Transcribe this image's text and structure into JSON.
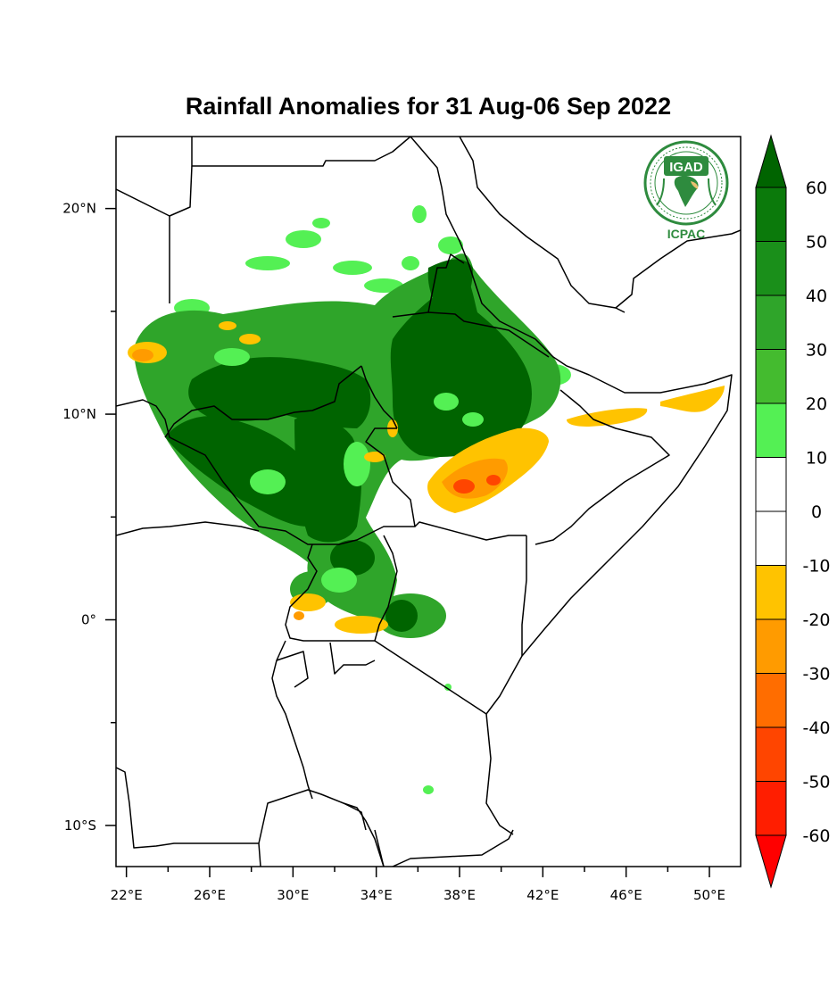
{
  "title": "Rainfall Anomalies for 31 Aug-06 Sep 2022",
  "map": {
    "lon_range": [
      21.5,
      51.5
    ],
    "lat_range": [
      -12,
      23.5
    ],
    "lat_ticks": [
      {
        "label": "20°N",
        "value": 20
      },
      {
        "label": "10°N",
        "value": 10
      },
      {
        "label": "0°",
        "value": 0
      },
      {
        "label": "10°S",
        "value": -10
      }
    ],
    "lat_minor_ticks": [
      15,
      5,
      -5
    ],
    "lon_ticks": [
      {
        "label": "22°E",
        "value": 22
      },
      {
        "label": "26°E",
        "value": 26
      },
      {
        "label": "30°E",
        "value": 30
      },
      {
        "label": "34°E",
        "value": 34
      },
      {
        "label": "38°E",
        "value": 38
      },
      {
        "label": "42°E",
        "value": 42
      },
      {
        "label": "46°E",
        "value": 46
      },
      {
        "label": "50°E",
        "value": 50
      }
    ],
    "lon_minor_ticks": [
      24,
      28,
      32,
      36,
      40,
      44,
      48
    ]
  },
  "colorbar": {
    "labels": [
      "60",
      "50",
      "40",
      "30",
      "20",
      "10",
      "0",
      "-10",
      "-20",
      "-30",
      "-40",
      "-50",
      "-60"
    ],
    "colors": [
      "#006400",
      "#0b7a0b",
      "#1a8f1a",
      "#2fa52a",
      "#44bb2f",
      "#54f054",
      "#ffffff",
      "#ffffff",
      "#ffc300",
      "#ff9b00",
      "#ff6d00",
      "#ff4500",
      "#ff1e00",
      "#ff0000"
    ],
    "top_color": "#006400",
    "bottom_color": "#ff0000"
  },
  "logo": {
    "top_text": "IGAD",
    "bottom_text": "ICPAC",
    "ring_text": "INTERGOVERNMENTAL AUTHORITY ON DEVELOPMENT",
    "color": "#2e8b3e"
  }
}
